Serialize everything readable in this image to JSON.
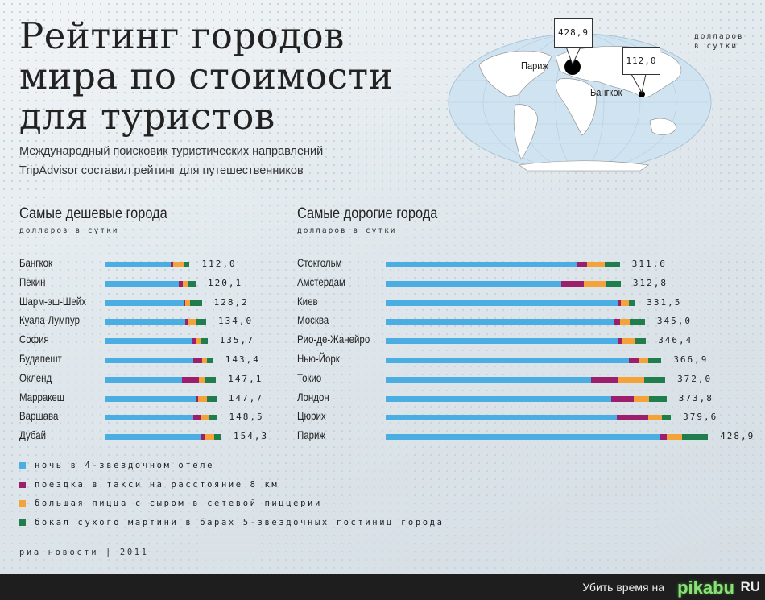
{
  "header": {
    "title_lines": [
      "Рейтинг городов",
      "мира по стоимости",
      "для туристов"
    ],
    "subtitle_lines": [
      "Международный поисковик туристических направлений",
      "TripAdvisor составил рейтинг для путешественников"
    ]
  },
  "map": {
    "unit_lines": [
      "долларов",
      "в сутки"
    ],
    "markers": [
      {
        "city": "Париж",
        "value": "428,9"
      },
      {
        "city": "Бангкок",
        "value": "112,0"
      }
    ]
  },
  "colors": {
    "hotel": "#4aaee3",
    "taxi": "#9c1f6e",
    "pizza": "#f4a23a",
    "martini": "#1f7d4e"
  },
  "chart_data": [
    {
      "type": "bar",
      "stacked": true,
      "orientation": "horizontal",
      "title": "Самые дешевые города",
      "unit": "долларов в сутки",
      "categories": [
        "Бангкок",
        "Пекин",
        "Шарм-эш-Шейх",
        "Куала-Лумпур",
        "София",
        "Будапешт",
        "Окленд",
        "Марракеш",
        "Варшава",
        "Дубай"
      ],
      "totals": [
        "112,0",
        "120,1",
        "128,2",
        "134,0",
        "135,7",
        "143,4",
        "147,1",
        "147,7",
        "148,5",
        "154,3"
      ],
      "series": [
        {
          "name": "hotel",
          "values": [
            86.3,
            98.0,
            104.0,
            106.4,
            115.0,
            117.3,
            102.0,
            119.8,
            116.6,
            127.4
          ]
        },
        {
          "name": "taxi",
          "values": [
            3.9,
            5.0,
            2.0,
            2.5,
            4.7,
            11.8,
            22.6,
            3.6,
            10.8,
            5.4
          ]
        },
        {
          "name": "pizza",
          "values": [
            14.3,
            6.0,
            6.5,
            11.5,
            8.2,
            5.7,
            8.2,
            11.8,
            11.1,
            11.5
          ]
        },
        {
          "name": "martini",
          "values": [
            7.5,
            11.1,
            15.7,
            13.6,
            7.8,
            8.6,
            14.3,
            12.5,
            10.0,
            10.0
          ]
        }
      ]
    },
    {
      "type": "bar",
      "stacked": true,
      "orientation": "horizontal",
      "title": "Самые дорогие  города",
      "unit": "долларов в сутки",
      "categories": [
        "Стокгольм",
        "Амстердам",
        "Киев",
        "Москва",
        "Рио-де-Жанейро",
        "Нью-Йорк",
        "Токио",
        "Лондон",
        "Цюрих",
        "Париж"
      ],
      "totals": [
        "311,6",
        "312,8",
        "331,5",
        "345,0",
        "346,4",
        "366,9",
        "372,0",
        "373,8",
        "379,6",
        "428,9"
      ],
      "series": [
        {
          "name": "hotel",
          "values": [
            253.6,
            233.4,
            310.1,
            303.0,
            309.8,
            323.8,
            273.2,
            299.6,
            307.4,
            363.9
          ]
        },
        {
          "name": "taxi",
          "values": [
            14.1,
            30.6,
            2.4,
            8.5,
            5.6,
            13.7,
            36.3,
            31.0,
            41.5,
            9.7
          ]
        },
        {
          "name": "pizza",
          "values": [
            23.8,
            29.0,
            11.3,
            13.3,
            16.9,
            11.7,
            34.7,
            19.4,
            19.0,
            21.0
          ]
        },
        {
          "name": "martini",
          "values": [
            20.1,
            19.8,
            7.7,
            20.2,
            14.1,
            17.7,
            27.8,
            23.8,
            11.7,
            34.3
          ]
        }
      ]
    }
  ],
  "legend": [
    {
      "key": "hotel",
      "label": "ночь в 4-звездочном отеле"
    },
    {
      "key": "taxi",
      "label": "поездка в такси на расстояние 8 км"
    },
    {
      "key": "pizza",
      "label": "большая пицца с сыром в сетевой пиццерии"
    },
    {
      "key": "martini",
      "label": "бокал сухого мартини в барах 5-звездочных гостиниц города"
    }
  ],
  "source": "риа новости | 2011",
  "footer": {
    "text": "Убить время на",
    "logo": "pikabu",
    "logo_suffix": "RU"
  }
}
